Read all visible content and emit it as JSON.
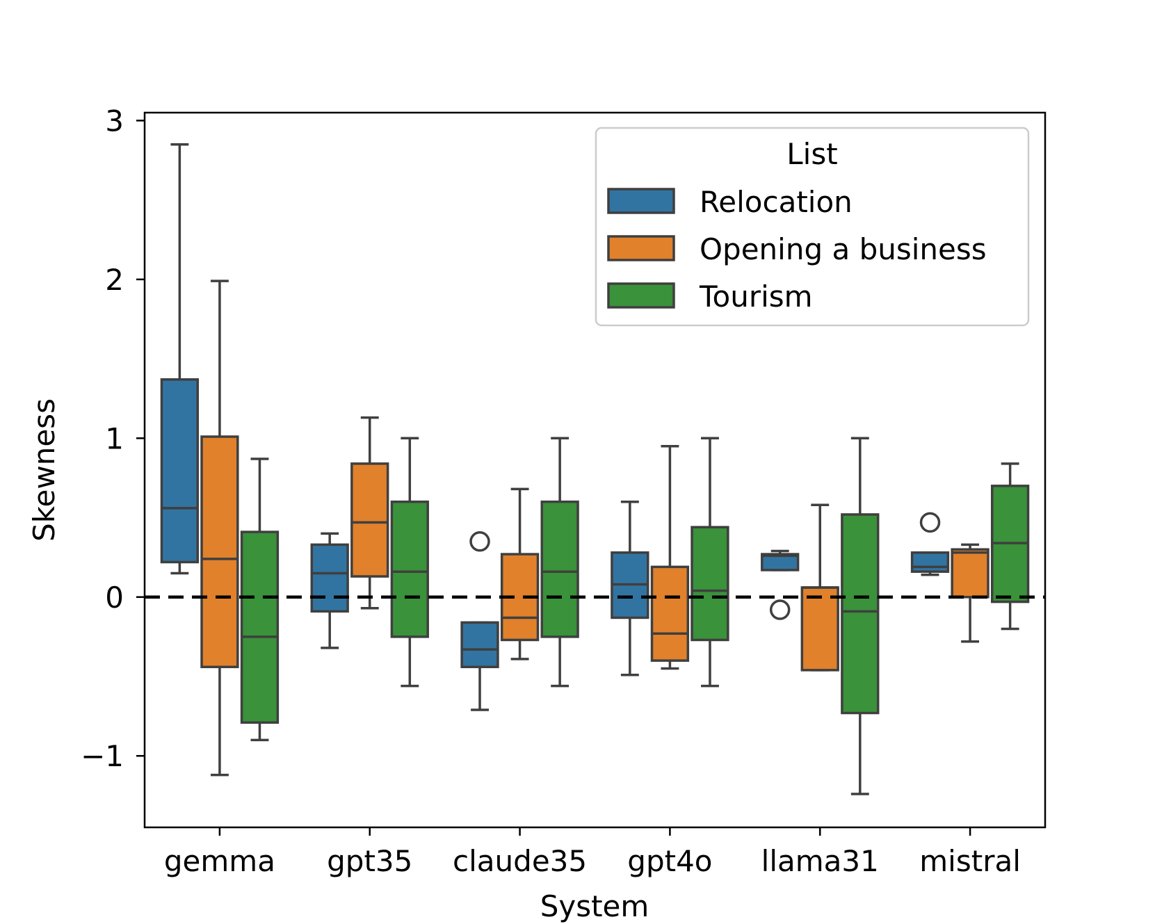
{
  "chart_data": {
    "type": "box",
    "xlabel": "System",
    "ylabel": "Skewness",
    "ylim": [
      -1.45,
      3.05
    ],
    "yticks": [
      -1,
      0,
      1,
      2,
      3
    ],
    "ytick_labels": [
      "−1",
      "0",
      "1",
      "2",
      "3"
    ],
    "categories": [
      "gemma",
      "gpt35",
      "claude35",
      "gpt4o",
      "llama31",
      "mistral"
    ],
    "reference_line": {
      "y": 0,
      "style": "dashed",
      "color": "#000000"
    },
    "legend": {
      "title": "List",
      "position": "top-right"
    },
    "series": [
      {
        "name": "Relocation",
        "color": "#3274a1",
        "boxes": [
          {
            "whislo": 0.15,
            "q1": 0.22,
            "med": 0.56,
            "q3": 1.37,
            "whishi": 2.85,
            "fliers": []
          },
          {
            "whislo": -0.32,
            "q1": -0.09,
            "med": 0.15,
            "q3": 0.33,
            "whishi": 0.4,
            "fliers": []
          },
          {
            "whislo": -0.71,
            "q1": -0.44,
            "med": -0.33,
            "q3": -0.16,
            "whishi": -0.16,
            "fliers": [
              0.35
            ]
          },
          {
            "whislo": -0.49,
            "q1": -0.13,
            "med": 0.08,
            "q3": 0.28,
            "whishi": 0.6,
            "fliers": []
          },
          {
            "whislo": 0.17,
            "q1": 0.17,
            "med": 0.26,
            "q3": 0.27,
            "whishi": 0.29,
            "fliers": [
              -0.08
            ]
          },
          {
            "whislo": 0.14,
            "q1": 0.16,
            "med": 0.19,
            "q3": 0.28,
            "whishi": 0.28,
            "fliers": [
              0.47
            ]
          }
        ]
      },
      {
        "name": "Opening a business",
        "color": "#e1812c",
        "boxes": [
          {
            "whislo": -1.12,
            "q1": -0.44,
            "med": 0.24,
            "q3": 1.01,
            "whishi": 1.99,
            "fliers": []
          },
          {
            "whislo": -0.07,
            "q1": 0.13,
            "med": 0.47,
            "q3": 0.84,
            "whishi": 1.13,
            "fliers": []
          },
          {
            "whislo": -0.39,
            "q1": -0.27,
            "med": -0.13,
            "q3": 0.27,
            "whishi": 0.68,
            "fliers": []
          },
          {
            "whislo": -0.45,
            "q1": -0.4,
            "med": -0.23,
            "q3": 0.19,
            "whishi": 0.95,
            "fliers": []
          },
          {
            "whislo": -0.46,
            "q1": -0.46,
            "med": 0.06,
            "q3": 0.06,
            "whishi": 0.58,
            "fliers": []
          },
          {
            "whislo": -0.28,
            "q1": 0.0,
            "med": 0.28,
            "q3": 0.3,
            "whishi": 0.33,
            "fliers": []
          }
        ]
      },
      {
        "name": "Tourism",
        "color": "#3a923a",
        "boxes": [
          {
            "whislo": -0.9,
            "q1": -0.79,
            "med": -0.25,
            "q3": 0.41,
            "whishi": 0.87,
            "fliers": []
          },
          {
            "whislo": -0.56,
            "q1": -0.25,
            "med": 0.16,
            "q3": 0.6,
            "whishi": 1.0,
            "fliers": []
          },
          {
            "whislo": -0.56,
            "q1": -0.25,
            "med": 0.16,
            "q3": 0.6,
            "whishi": 1.0,
            "fliers": []
          },
          {
            "whislo": -0.56,
            "q1": -0.27,
            "med": 0.04,
            "q3": 0.44,
            "whishi": 1.0,
            "fliers": []
          },
          {
            "whislo": -1.24,
            "q1": -0.73,
            "med": -0.09,
            "q3": 0.52,
            "whishi": 1.0,
            "fliers": []
          },
          {
            "whislo": -0.2,
            "q1": -0.03,
            "med": 0.34,
            "q3": 0.7,
            "whishi": 0.84,
            "fliers": []
          }
        ]
      }
    ]
  }
}
